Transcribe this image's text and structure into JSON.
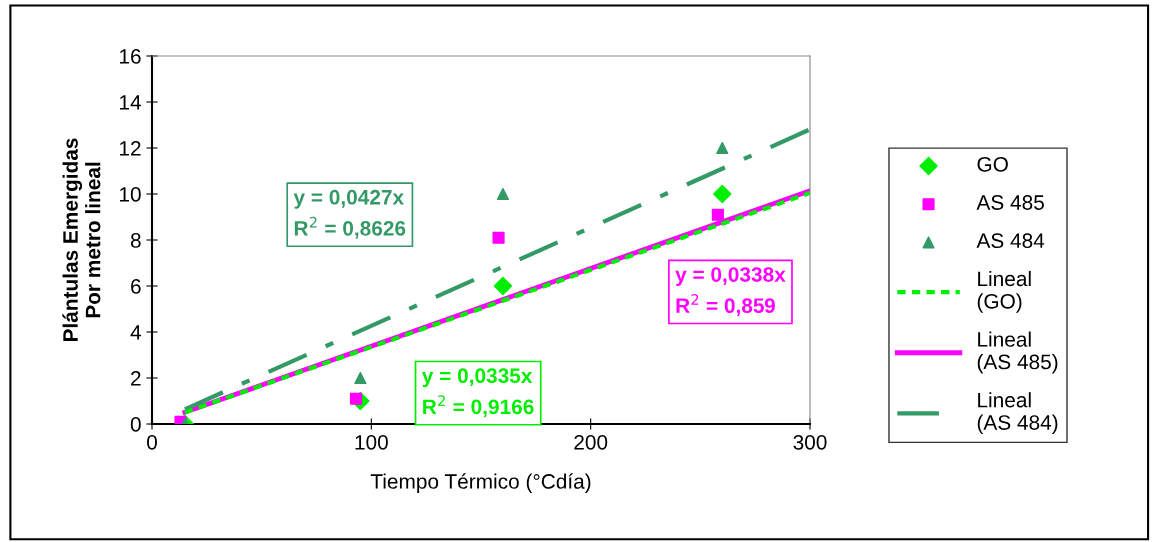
{
  "chart_data": {
    "type": "scatter",
    "xlabel": "Tiempo Térmico (°Cdía)",
    "ylabel": "Plántulas Emergidas\nPor metro lineal",
    "xlim": [
      0,
      300
    ],
    "ylim": [
      0,
      16
    ],
    "xticks": [
      0,
      100,
      200,
      300
    ],
    "yticks": [
      0,
      2,
      4,
      6,
      8,
      10,
      12,
      14,
      16
    ],
    "grid": false,
    "legend": "right",
    "series": [
      {
        "name": "GO",
        "marker": "diamond",
        "color": "#00ee00",
        "x": [
          15,
          95,
          160,
          260
        ],
        "values": [
          0,
          1,
          6,
          10
        ]
      },
      {
        "name": "AS 485",
        "marker": "square",
        "color": "#ff00ff",
        "x": [
          13,
          93,
          158,
          258
        ],
        "values": [
          0.1,
          1.1,
          8.1,
          9.1
        ]
      },
      {
        "name": "AS 484",
        "marker": "triangle",
        "color": "#339966",
        "x": [
          15,
          95,
          160,
          260
        ],
        "values": [
          0,
          2,
          10,
          12
        ]
      },
      {
        "name": "Lineal (GO)",
        "type": "line",
        "line_style": "dashed",
        "marker": "none",
        "color": "#00ee00",
        "x": [
          15,
          300
        ],
        "values": [
          0.5,
          10.05
        ]
      },
      {
        "name": "Lineal (AS 485)",
        "type": "line",
        "line_style": "solid",
        "marker": "none",
        "color": "#ff00ff",
        "x": [
          15,
          300
        ],
        "values": [
          0.51,
          10.14
        ]
      },
      {
        "name": "Lineal (AS 484)",
        "type": "line",
        "line_style": "dashdot",
        "marker": "none",
        "color": "#339966",
        "x": [
          15,
          300
        ],
        "values": [
          0.64,
          12.81
        ]
      }
    ],
    "annotations": [
      "y = 0,0335x\nR$^{2}$ = 0,9166",
      "y = 0,0338x\nR$^{2}$ = 0,859",
      "y = 0,0427x\nR$^{2}$ = 0,8626"
    ]
  }
}
